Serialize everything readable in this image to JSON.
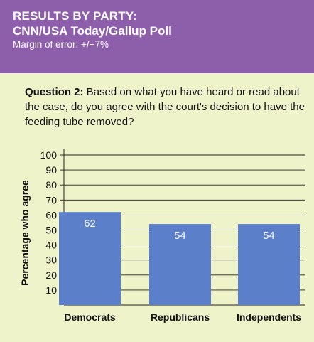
{
  "header": {
    "title": "RESULTS BY PARTY:",
    "subtitle": "CNN/USA Today/Gallup Poll",
    "margin_text": "Margin of error: +/−7%"
  },
  "question": {
    "label": "Question 2:",
    "text": " Based on what you have heard or read about the case, do you agree with the court's decision to have the feeding tube removed?"
  },
  "colors": {
    "header_bg": "#8d5ea9",
    "panel_bg": "#eef3c9",
    "bar": "#5b7fc8"
  },
  "chart_data": {
    "type": "bar",
    "categories": [
      "Democrats",
      "Republicans",
      "Independents"
    ],
    "values": [
      62,
      54,
      54
    ],
    "ylabel": "Percentage who agree",
    "xlabel": "",
    "ylim": [
      0,
      100
    ],
    "yticks": [
      10,
      20,
      30,
      40,
      50,
      60,
      70,
      80,
      90,
      100
    ],
    "grid": true,
    "data_labels": [
      "62",
      "54",
      "54"
    ]
  }
}
